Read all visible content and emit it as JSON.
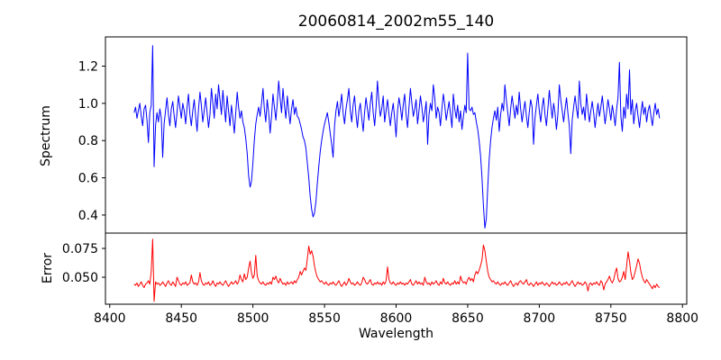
{
  "figure": {
    "title": "20060814_2002m55_140",
    "xlabel": "Wavelength",
    "ylabel_top": "Spectrum",
    "ylabel_bottom": "Error",
    "background_color": "#ffffff",
    "spine_color": "#000000"
  },
  "chart_data": [
    {
      "type": "line",
      "title": "20060814_2002m55_140",
      "ylabel": "Spectrum",
      "series_name": "spectrum",
      "series_color": "#0000ff",
      "x_start": 8417,
      "x_step": 1,
      "xlim": [
        8397,
        8803
      ],
      "ylim": [
        0.303,
        1.357
      ],
      "yticks": [
        0.4,
        0.6,
        0.8,
        1.0,
        1.2
      ],
      "ytick_labels": [
        "0.4",
        "0.6",
        "0.8",
        "1.0",
        "1.2"
      ],
      "grid": false,
      "legend": "none",
      "features": "noisy continuum near 1.0; absorption lines at 8498 (0.55), 8542 (0.39), 8662 (0.33); spikes at 8430 (1.31), 8650 (1.27), 8756 (1.22), 8763 (1.18)",
      "values": [
        0.95,
        0.98,
        0.92,
        0.96,
        1.0,
        0.93,
        0.88,
        0.97,
        0.99,
        0.91,
        0.79,
        0.95,
        0.99,
        1.31,
        0.66,
        0.88,
        0.95,
        0.9,
        0.97,
        0.92,
        0.71,
        0.89,
        0.96,
        1.03,
        0.94,
        0.88,
        0.97,
        1.01,
        0.93,
        0.87,
        0.95,
        1.04,
        0.98,
        0.92,
        1.0,
        0.96,
        0.89,
        0.98,
        1.05,
        0.94,
        0.88,
        0.96,
        1.02,
        0.93,
        0.85,
        0.97,
        1.06,
        0.99,
        0.9,
        0.96,
        1.03,
        0.95,
        0.87,
        0.94,
        1.08,
        1.0,
        0.92,
        1.05,
        0.97,
        1.1,
        1.02,
        0.94,
        1.07,
        0.98,
        0.9,
        1.04,
        0.96,
        0.88,
        0.99,
        0.92,
        0.84,
        0.95,
        1.06,
        0.98,
        0.92,
        0.96,
        0.9,
        0.87,
        0.81,
        0.73,
        0.61,
        0.55,
        0.58,
        0.68,
        0.8,
        0.89,
        0.94,
        0.98,
        0.93,
        1.0,
        1.08,
        0.97,
        0.9,
        1.02,
        0.95,
        0.84,
        0.93,
        1.05,
        0.98,
        0.91,
        1.0,
        1.12,
        1.03,
        0.95,
        1.08,
        0.99,
        0.92,
        1.04,
        0.96,
        0.89,
        0.97,
        1.02,
        0.94,
        0.98,
        0.93,
        0.92,
        0.89,
        0.86,
        0.82,
        0.8,
        0.76,
        0.68,
        0.6,
        0.5,
        0.43,
        0.39,
        0.41,
        0.47,
        0.57,
        0.66,
        0.74,
        0.8,
        0.85,
        0.89,
        0.92,
        0.95,
        0.9,
        0.84,
        0.78,
        0.71,
        0.88,
        0.96,
        1.01,
        0.93,
        0.98,
        1.05,
        0.95,
        0.89,
        0.97,
        1.02,
        1.08,
        0.96,
        0.9,
        0.99,
        1.04,
        0.94,
        0.87,
        0.96,
        1.0,
        0.92,
        0.85,
        0.95,
        1.03,
        0.97,
        0.91,
        1.0,
        1.06,
        0.95,
        0.88,
        0.98,
        1.12,
        1.01,
        0.93,
        0.97,
        1.04,
        0.9,
        0.96,
        1.02,
        0.94,
        0.88,
        0.95,
        1.0,
        0.92,
        0.82,
        0.96,
        1.03,
        0.98,
        0.91,
        0.99,
        1.05,
        0.94,
        0.87,
        0.98,
        1.08,
        1.0,
        0.93,
        0.97,
        1.02,
        0.89,
        0.96,
        1.04,
        0.98,
        0.9,
        0.95,
        1.01,
        0.78,
        0.94,
        1.0,
        0.96,
        1.1,
        1.03,
        0.92,
        0.98,
        0.95,
        0.88,
        0.97,
        1.05,
        0.99,
        0.91,
        0.96,
        1.01,
        0.94,
        0.87,
        1.05,
        0.97,
        0.92,
        0.99,
        0.9,
        0.96,
        0.86,
        0.93,
        0.99,
        0.95,
        1.27,
        0.97,
        0.96,
        0.98,
        0.94,
        0.95,
        0.9,
        0.86,
        0.8,
        0.72,
        0.6,
        0.45,
        0.33,
        0.38,
        0.55,
        0.7,
        0.8,
        0.87,
        0.92,
        0.96,
        0.91,
        0.98,
        0.85,
        0.94,
        1.0,
        0.96,
        1.1,
        1.02,
        0.95,
        0.88,
        0.97,
        1.04,
        0.98,
        0.92,
        0.99,
        0.94,
        1.06,
        0.97,
        0.9,
        0.96,
        1.01,
        0.93,
        0.87,
        0.95,
        1.02,
        0.98,
        0.78,
        0.92,
        0.99,
        1.05,
        0.96,
        0.9,
        0.98,
        1.03,
        0.94,
        0.88,
        0.97,
        1.07,
        0.99,
        0.92,
        1.0,
        0.95,
        0.86,
        0.94,
        1.1,
        1.02,
        0.96,
        0.9,
        0.97,
        1.03,
        0.95,
        0.88,
        0.73,
        0.91,
        0.98,
        1.04,
        0.97,
        0.92,
        1.12,
        1.0,
        0.94,
        0.98,
        0.91,
        1.05,
        0.97,
        0.9,
        0.96,
        1.01,
        0.95,
        0.87,
        0.94,
        1.0,
        0.93,
        0.98,
        1.04,
        0.96,
        0.89,
        0.95,
        1.02,
        0.97,
        0.91,
        0.99,
        0.94,
        0.88,
        0.97,
        1.03,
        1.22,
        0.93,
        0.85,
        0.98,
        0.92,
        1.05,
        0.97,
        1.18,
        0.94,
        1.02,
        0.89,
        0.96,
        1.0,
        0.93,
        0.87,
        0.95,
        1.01,
        0.94,
        0.98,
        0.9,
        0.96,
        0.99,
        0.93,
        0.88,
        0.95,
        1.0,
        0.94,
        0.97,
        0.92
      ]
    },
    {
      "type": "line",
      "ylabel": "Error",
      "xlabel": "Wavelength",
      "series_name": "error",
      "series_color": "#ff0000",
      "x_start": 8417,
      "x_step": 1,
      "xlim": [
        8397,
        8803
      ],
      "ylim": [
        0.0266,
        0.0883
      ],
      "yticks": [
        0.05,
        0.075
      ],
      "ytick_labels": [
        "0.050",
        "0.075"
      ],
      "xticks": [
        8400,
        8450,
        8500,
        8550,
        8600,
        8650,
        8700,
        8750,
        8800
      ],
      "xtick_labels": [
        "8400",
        "8450",
        "8500",
        "8550",
        "8600",
        "8650",
        "8700",
        "8750",
        "8800"
      ],
      "grid": false,
      "legend": "none",
      "features": "baseline near 0.045; spike 0.083 then dip 0.029 at 8430; peaks ~0.077 at 8539, 0.078 at 8661, 0.072 at 8762",
      "values": [
        0.044,
        0.043,
        0.045,
        0.042,
        0.044,
        0.046,
        0.043,
        0.041,
        0.044,
        0.045,
        0.047,
        0.044,
        0.055,
        0.083,
        0.029,
        0.046,
        0.044,
        0.045,
        0.043,
        0.044,
        0.046,
        0.044,
        0.042,
        0.045,
        0.047,
        0.044,
        0.043,
        0.046,
        0.044,
        0.042,
        0.05,
        0.047,
        0.044,
        0.043,
        0.045,
        0.044,
        0.046,
        0.043,
        0.044,
        0.045,
        0.052,
        0.046,
        0.044,
        0.045,
        0.043,
        0.046,
        0.054,
        0.047,
        0.044,
        0.043,
        0.045,
        0.044,
        0.046,
        0.043,
        0.044,
        0.047,
        0.044,
        0.042,
        0.045,
        0.044,
        0.046,
        0.044,
        0.043,
        0.045,
        0.047,
        0.044,
        0.042,
        0.044,
        0.046,
        0.044,
        0.045,
        0.047,
        0.044,
        0.046,
        0.052,
        0.048,
        0.046,
        0.053,
        0.048,
        0.05,
        0.058,
        0.064,
        0.054,
        0.049,
        0.052,
        0.069,
        0.051,
        0.047,
        0.045,
        0.044,
        0.046,
        0.044,
        0.043,
        0.045,
        0.044,
        0.046,
        0.044,
        0.05,
        0.048,
        0.051,
        0.047,
        0.045,
        0.049,
        0.046,
        0.044,
        0.045,
        0.043,
        0.046,
        0.044,
        0.045,
        0.046,
        0.044,
        0.047,
        0.045,
        0.048,
        0.05,
        0.055,
        0.052,
        0.055,
        0.058,
        0.056,
        0.066,
        0.077,
        0.07,
        0.073,
        0.068,
        0.06,
        0.054,
        0.05,
        0.048,
        0.046,
        0.047,
        0.045,
        0.044,
        0.046,
        0.044,
        0.043,
        0.045,
        0.044,
        0.046,
        0.044,
        0.043,
        0.045,
        0.047,
        0.044,
        0.042,
        0.044,
        0.046,
        0.043,
        0.045,
        0.049,
        0.046,
        0.044,
        0.045,
        0.043,
        0.044,
        0.046,
        0.044,
        0.043,
        0.045,
        0.05,
        0.048,
        0.045,
        0.044,
        0.046,
        0.048,
        0.044,
        0.043,
        0.045,
        0.044,
        0.046,
        0.044,
        0.045,
        0.043,
        0.046,
        0.044,
        0.047,
        0.059,
        0.048,
        0.045,
        0.044,
        0.046,
        0.044,
        0.043,
        0.045,
        0.044,
        0.046,
        0.044,
        0.045,
        0.043,
        0.045,
        0.044,
        0.046,
        0.048,
        0.044,
        0.043,
        0.045,
        0.047,
        0.044,
        0.046,
        0.044,
        0.045,
        0.043,
        0.05,
        0.046,
        0.044,
        0.045,
        0.043,
        0.046,
        0.044,
        0.045,
        0.047,
        0.044,
        0.043,
        0.046,
        0.044,
        0.049,
        0.045,
        0.044,
        0.046,
        0.044,
        0.043,
        0.045,
        0.044,
        0.047,
        0.044,
        0.046,
        0.044,
        0.051,
        0.047,
        0.045,
        0.046,
        0.044,
        0.048,
        0.05,
        0.047,
        0.049,
        0.046,
        0.052,
        0.055,
        0.053,
        0.056,
        0.06,
        0.065,
        0.078,
        0.073,
        0.064,
        0.055,
        0.05,
        0.048,
        0.046,
        0.047,
        0.045,
        0.044,
        0.046,
        0.044,
        0.043,
        0.045,
        0.044,
        0.046,
        0.044,
        0.043,
        0.045,
        0.047,
        0.044,
        0.042,
        0.044,
        0.045,
        0.043,
        0.046,
        0.047,
        0.045,
        0.044,
        0.046,
        0.048,
        0.044,
        0.043,
        0.045,
        0.044,
        0.042,
        0.044,
        0.046,
        0.043,
        0.045,
        0.044,
        0.046,
        0.044,
        0.043,
        0.045,
        0.044,
        0.042,
        0.044,
        0.046,
        0.044,
        0.045,
        0.043,
        0.044,
        0.046,
        0.044,
        0.043,
        0.045,
        0.044,
        0.046,
        0.044,
        0.043,
        0.045,
        0.047,
        0.044,
        0.042,
        0.044,
        0.046,
        0.044,
        0.045,
        0.043,
        0.044,
        0.046,
        0.044,
        0.038,
        0.044,
        0.045,
        0.043,
        0.045,
        0.044,
        0.046,
        0.044,
        0.043,
        0.047,
        0.045,
        0.039,
        0.044,
        0.046,
        0.048,
        0.051,
        0.047,
        0.045,
        0.048,
        0.054,
        0.058,
        0.049,
        0.046,
        0.047,
        0.05,
        0.055,
        0.048,
        0.06,
        0.072,
        0.064,
        0.054,
        0.048,
        0.05,
        0.055,
        0.06,
        0.066,
        0.062,
        0.055,
        0.05,
        0.047,
        0.045,
        0.048,
        0.046,
        0.044,
        0.042,
        0.04,
        0.043,
        0.041,
        0.044,
        0.042,
        0.041
      ]
    }
  ]
}
